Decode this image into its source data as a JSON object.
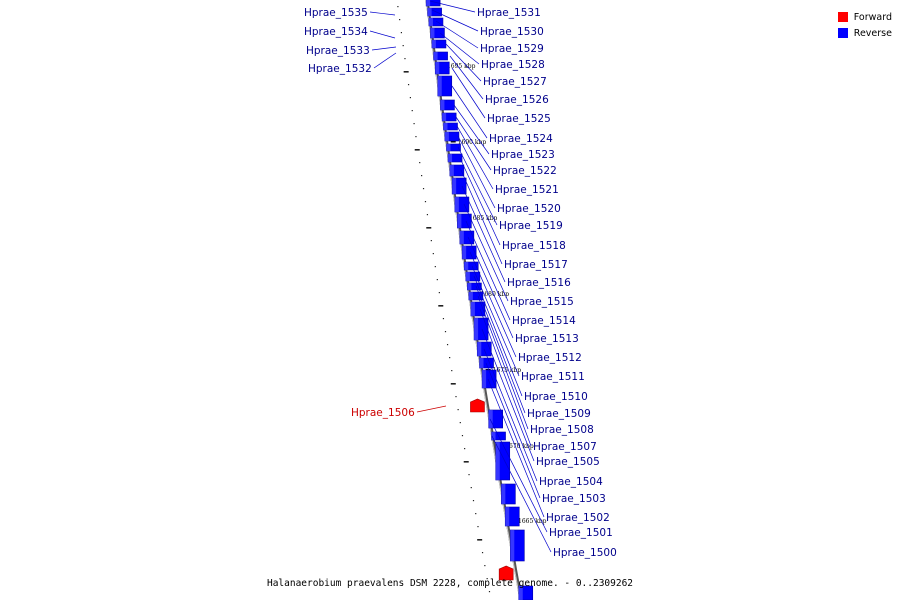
{
  "caption": "Halanaerobium praevalens DSM 2228, complete genome. - 0..2309262",
  "legend": [
    {
      "label": "Forward",
      "color": "#ff0000"
    },
    {
      "label": "Reverse",
      "color": "#0000ff"
    }
  ],
  "colors": {
    "forward": "#ff0000",
    "reverse": "#0000ff",
    "forward_label": "#cc0000",
    "reverse_label": "#00008b",
    "backbone": "#808080"
  },
  "scale_ticks": [
    "1695 kbp",
    "1690 kbp",
    "1685 kbp",
    "1680 kbp",
    "1675 kbp",
    "1670 kbp",
    "1665 kbp"
  ],
  "genes": [
    {
      "name": "Hprae_1535",
      "strand": "reverse"
    },
    {
      "name": "Hprae_1534",
      "strand": "reverse"
    },
    {
      "name": "Hprae_1533",
      "strand": "reverse"
    },
    {
      "name": "Hprae_1532",
      "strand": "reverse"
    },
    {
      "name": "Hprae_1531",
      "strand": "reverse"
    },
    {
      "name": "Hprae_1530",
      "strand": "reverse"
    },
    {
      "name": "Hprae_1529",
      "strand": "reverse"
    },
    {
      "name": "Hprae_1528",
      "strand": "reverse"
    },
    {
      "name": "Hprae_1527",
      "strand": "reverse"
    },
    {
      "name": "Hprae_1526",
      "strand": "reverse"
    },
    {
      "name": "Hprae_1525",
      "strand": "reverse"
    },
    {
      "name": "Hprae_1524",
      "strand": "reverse"
    },
    {
      "name": "Hprae_1523",
      "strand": "reverse"
    },
    {
      "name": "Hprae_1522",
      "strand": "reverse"
    },
    {
      "name": "Hprae_1521",
      "strand": "reverse"
    },
    {
      "name": "Hprae_1520",
      "strand": "reverse"
    },
    {
      "name": "Hprae_1519",
      "strand": "reverse"
    },
    {
      "name": "Hprae_1518",
      "strand": "reverse"
    },
    {
      "name": "Hprae_1517",
      "strand": "reverse"
    },
    {
      "name": "Hprae_1516",
      "strand": "reverse"
    },
    {
      "name": "Hprae_1515",
      "strand": "reverse"
    },
    {
      "name": "Hprae_1514",
      "strand": "reverse"
    },
    {
      "name": "Hprae_1513",
      "strand": "reverse"
    },
    {
      "name": "Hprae_1512",
      "strand": "reverse"
    },
    {
      "name": "Hprae_1511",
      "strand": "reverse"
    },
    {
      "name": "Hprae_1510",
      "strand": "reverse"
    },
    {
      "name": "Hprae_1509",
      "strand": "reverse"
    },
    {
      "name": "Hprae_1508",
      "strand": "reverse"
    },
    {
      "name": "Hprae_1507",
      "strand": "reverse"
    },
    {
      "name": "Hprae_1506",
      "strand": "forward"
    },
    {
      "name": "Hprae_1505",
      "strand": "reverse"
    },
    {
      "name": "Hprae_1504",
      "strand": "reverse"
    },
    {
      "name": "Hprae_1503",
      "strand": "reverse"
    },
    {
      "name": "Hprae_1502",
      "strand": "reverse"
    },
    {
      "name": "Hprae_1501",
      "strand": "reverse"
    },
    {
      "name": "Hprae_1500",
      "strand": "reverse"
    }
  ]
}
